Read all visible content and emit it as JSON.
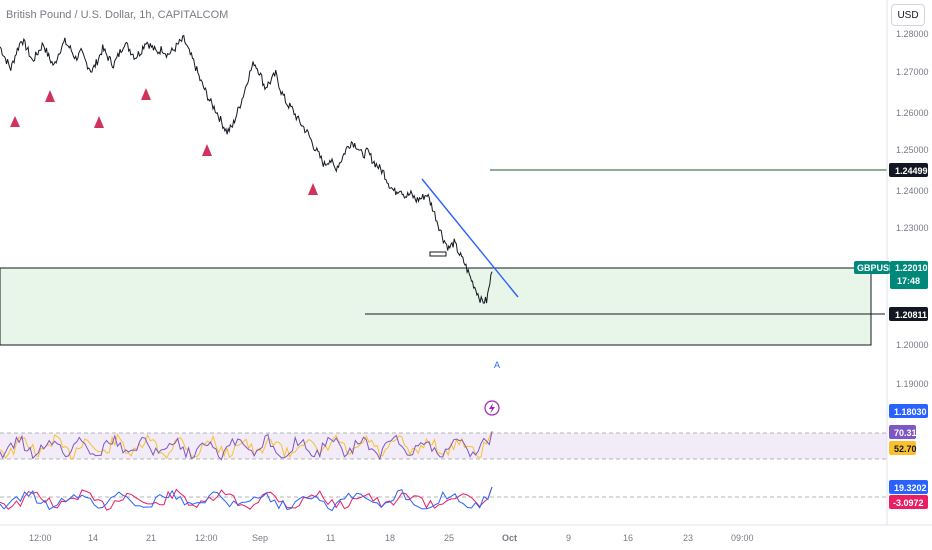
{
  "header": {
    "title": "British Pound / U.S. Dollar, 1h, CAPITALCOM",
    "currency": "USD"
  },
  "chart_data": {
    "type": "candlestick",
    "price_axis": {
      "ticks": [
        "1.28000",
        "1.27000",
        "1.26000",
        "1.25000",
        "1.24000",
        "1.23000",
        "1.20000",
        "1.19000"
      ],
      "ylim": [
        1.18,
        1.285
      ]
    },
    "x_axis": {
      "ticks": [
        "12:00",
        "14",
        "21",
        "12:00",
        "Sep",
        "11",
        "18",
        "25",
        "Oct",
        "9",
        "16",
        "23",
        "09:00"
      ]
    },
    "price_path": [
      1.2775,
      1.2745,
      1.2718,
      1.276,
      1.2795,
      1.277,
      1.2738,
      1.276,
      1.2783,
      1.2749,
      1.2725,
      1.2765,
      1.2788,
      1.277,
      1.2745,
      1.276,
      1.2732,
      1.2712,
      1.2738,
      1.277,
      1.2747,
      1.2728,
      1.2755,
      1.2786,
      1.2768,
      1.2748,
      1.2762,
      1.279,
      1.2775,
      1.276,
      1.277,
      1.2755,
      1.2765,
      1.2782,
      1.2795,
      1.276,
      1.273,
      1.269,
      1.266,
      1.263,
      1.261,
      1.258,
      1.2555,
      1.257,
      1.261,
      1.265,
      1.27,
      1.2735,
      1.271,
      1.267,
      1.2685,
      1.2705,
      1.266,
      1.263,
      1.2615,
      1.259,
      1.257,
      1.255,
      1.252,
      1.2495,
      1.247,
      1.2485,
      1.246,
      1.248,
      1.251,
      1.253,
      1.252,
      1.2495,
      1.2505,
      1.248,
      1.2465,
      1.245,
      1.242,
      1.24,
      1.241,
      1.239,
      1.2395,
      1.238,
      1.2385,
      1.2395,
      1.236,
      1.232,
      1.228,
      1.2255,
      1.227,
      1.224,
      1.2215,
      1.218,
      1.215,
      1.212,
      1.212,
      1.2195
    ],
    "support_lines": [
      {
        "label": "1.24499",
        "value": 1.24499
      },
      {
        "label": "1.20811",
        "value": 1.20811
      }
    ],
    "zone": {
      "top": 1.2201,
      "bottom": 1.2
    },
    "trendline": {
      "from": [
        0.7365,
        1.2425
      ],
      "to": [
        0.5556,
        1.208
      ]
    },
    "current": {
      "symbol": "GBPUSD",
      "price": "1.22010",
      "countdown": "17:48"
    },
    "extra_price_tag": "1.18030",
    "signal_marker": "A",
    "oscillator1": {
      "upper": "70.31",
      "lower": "52.70"
    },
    "oscillator2": {
      "upper": "19.3202",
      "lower": "-3.0972"
    }
  },
  "colors": {
    "up_arrow": "#d0335e",
    "trendline": "#2962ff",
    "zone_fill": "#e8f5e9",
    "hline": "#1b5e20",
    "tag_dark": "#131722",
    "tag_teal": "#00897b",
    "osc_purple": "#7e57c2",
    "osc_yellow": "#fbc02d",
    "osc_red": "#e91e63",
    "osc_blue": "#2962ff"
  }
}
